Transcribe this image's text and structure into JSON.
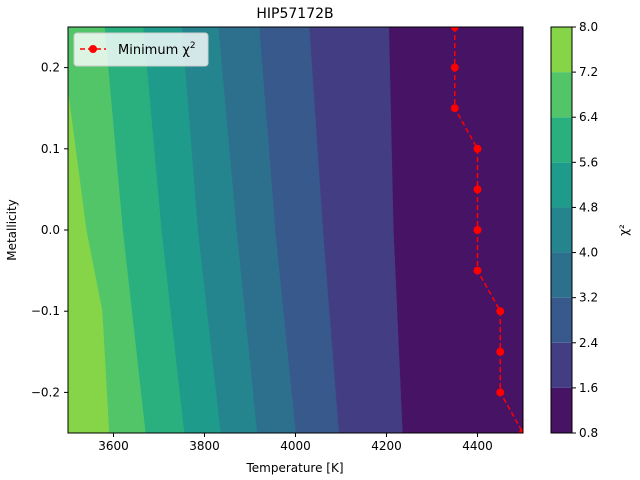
{
  "chart_data": {
    "type": "contour",
    "title": "HIP57172B",
    "xlabel": "Temperature [K]",
    "ylabel": "Metallicity",
    "xlim": [
      3500,
      4500
    ],
    "ylim": [
      -0.25,
      0.25
    ],
    "x_ticks": [
      3600,
      3800,
      4000,
      4200,
      4400
    ],
    "y_ticks": [
      -0.2,
      -0.1,
      0.0,
      0.1,
      0.2
    ],
    "colorbar": {
      "label": "χ²",
      "levels": [
        0.8,
        1.6,
        2.4,
        3.2,
        4.0,
        4.8,
        5.6,
        6.4,
        7.2,
        8.0
      ],
      "colors": [
        "#471365",
        "#433d84",
        "#38598c",
        "#2d708e",
        "#25858e",
        "#1e9b8a",
        "#2ab07f",
        "#52c569",
        "#86d549",
        "#dde318"
      ]
    },
    "contour_boundaries": [
      {
        "level": 1.6,
        "points": [
          [
            4235,
            -0.25
          ],
          [
            4215,
            0.0
          ],
          [
            4205,
            0.25
          ]
        ]
      },
      {
        "level": 2.4,
        "points": [
          [
            4095,
            -0.25
          ],
          [
            4060,
            0.0
          ],
          [
            4030,
            0.25
          ]
        ]
      },
      {
        "level": 3.2,
        "points": [
          [
            4000,
            -0.25
          ],
          [
            3955,
            0.0
          ],
          [
            3920,
            0.25
          ]
        ]
      },
      {
        "level": 4.0,
        "points": [
          [
            3915,
            -0.25
          ],
          [
            3870,
            0.0
          ],
          [
            3830,
            0.25
          ]
        ]
      },
      {
        "level": 4.8,
        "points": [
          [
            3835,
            -0.25
          ],
          [
            3785,
            0.0
          ],
          [
            3750,
            0.25
          ]
        ]
      },
      {
        "level": 5.6,
        "points": [
          [
            3755,
            -0.25
          ],
          [
            3705,
            0.0
          ],
          [
            3665,
            0.25
          ]
        ]
      },
      {
        "level": 6.4,
        "points": [
          [
            3670,
            -0.25
          ],
          [
            3620,
            0.0
          ],
          [
            3580,
            0.25
          ]
        ]
      },
      {
        "level": 7.2,
        "points": [
          [
            3590,
            -0.25
          ],
          [
            3575,
            -0.1
          ],
          [
            3540,
            0.0
          ],
          [
            3500,
            0.17
          ]
        ]
      }
    ],
    "series": [
      {
        "name": "Minimum χ²",
        "color": "#ff0000",
        "style": "dashed",
        "marker": "circle",
        "x": [
          4350,
          4350,
          4350,
          4400,
          4400,
          4400,
          4400,
          4450,
          4450,
          4450,
          4500
        ],
        "y": [
          0.25,
          0.2,
          0.15,
          0.1,
          0.05,
          0.0,
          -0.05,
          -0.1,
          -0.15,
          -0.2,
          -0.25
        ]
      }
    ],
    "legend": {
      "position": "top-left",
      "label_text": "Minimum χ",
      "label_sup": "2"
    },
    "grid": false
  }
}
